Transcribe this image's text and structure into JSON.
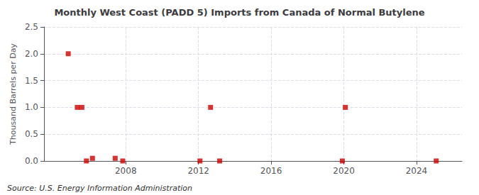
{
  "chart_data": {
    "type": "scatter",
    "title": "Monthly West Coast (PADD 5) Imports from Canada of Normal Butylene",
    "ylabel": "Thousand Barrels per Day",
    "annotations": [
      "Source: U.S. Energy Information Administration"
    ],
    "x": [
      2004.8333333333333,
      2005.3333333333333,
      2005.5833333333333,
      2005.8333333333333,
      2006.1666666666667,
      2007.4166666666667,
      2007.8333333333333,
      2012.0833333333333,
      2012.6666666666667,
      2013.1666666666667,
      2019.9166666666667,
      2020.0833333333333,
      2025.0833333333333
    ],
    "values": [
      2.0,
      1.0,
      1.0,
      0.0,
      0.05,
      0.05,
      0.0,
      0.0,
      1.0,
      0.0,
      0.0,
      1.0,
      0.0
    ],
    "color": "#cc0000",
    "marker": "square",
    "xlim": [
      2003.5,
      2026.5
    ],
    "xticks": [
      2008,
      2012,
      2016,
      2020,
      2024
    ],
    "ylim": [
      0,
      2.5
    ],
    "yticks": [
      {
        "value": 0.0,
        "label": "0.0"
      },
      0.5,
      {
        "value": 1.0,
        "label": "1.0"
      },
      1.5,
      {
        "value": 2.0,
        "label": "2.0"
      },
      2.5
    ],
    "grid": true
  }
}
